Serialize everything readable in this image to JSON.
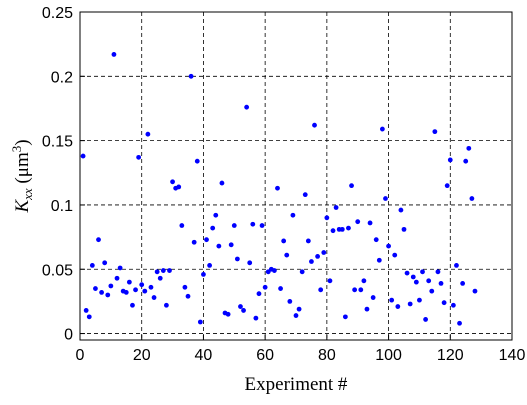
{
  "chart_data": {
    "type": "scatter",
    "x_label": "Experiment #",
    "y_label": [
      "K",
      "xx",
      " (μm",
      "3",
      ")"
    ],
    "color": "#0000ff",
    "grid": true,
    "xlim": [
      0,
      140
    ],
    "xticks": [
      0,
      20,
      40,
      60,
      80,
      100,
      120,
      140
    ],
    "ylim": [
      -0.005,
      0.25
    ],
    "yticks": [
      0,
      0.05,
      0.1,
      0.15,
      0.2,
      0.25
    ],
    "x": [
      1,
      2,
      3,
      4,
      5,
      6,
      7,
      8,
      9,
      10,
      11,
      12,
      13,
      14,
      15,
      16,
      17,
      18,
      19,
      20,
      21,
      22,
      23,
      24,
      25,
      26,
      27,
      28,
      29,
      30,
      31,
      32,
      33,
      34,
      35,
      36,
      37,
      38,
      39,
      40,
      41,
      42,
      43,
      44,
      45,
      46,
      47,
      48,
      49,
      50,
      51,
      52,
      53,
      54,
      55,
      56,
      57,
      58,
      59,
      60,
      61,
      62,
      63,
      64,
      65,
      66,
      67,
      68,
      69,
      70,
      71,
      72,
      73,
      74,
      75,
      76,
      77,
      78,
      79,
      80,
      81,
      82,
      83,
      84,
      85,
      86,
      87,
      88,
      89,
      90,
      91,
      92,
      93,
      94,
      95,
      96,
      97,
      98,
      99,
      100,
      101,
      102,
      103,
      104,
      105,
      106,
      107,
      108,
      109,
      110,
      111,
      112,
      113,
      114,
      115,
      116,
      117,
      118,
      119,
      120,
      121,
      122,
      123,
      124,
      125,
      126,
      127,
      128
    ],
    "values": [
      0.138,
      0.018,
      0.013,
      0.053,
      0.035,
      0.073,
      0.032,
      0.055,
      0.03,
      0.037,
      0.217,
      0.043,
      0.051,
      0.033,
      0.032,
      0.04,
      0.022,
      0.034,
      0.137,
      0.038,
      0.033,
      0.155,
      0.036,
      0.028,
      0.048,
      0.043,
      0.049,
      0.022,
      0.049,
      0.118,
      0.113,
      0.114,
      0.084,
      0.036,
      0.029,
      0.2,
      0.071,
      0.134,
      0.009,
      0.046,
      0.073,
      0.053,
      0.082,
      0.092,
      0.068,
      0.117,
      0.016,
      0.015,
      0.069,
      0.084,
      0.058,
      0.021,
      0.018,
      0.176,
      0.055,
      0.085,
      0.012,
      0.031,
      0.084,
      0.036,
      0.048,
      0.05,
      0.049,
      0.113,
      0.035,
      0.072,
      0.061,
      0.025,
      0.092,
      0.014,
      0.019,
      0.048,
      0.108,
      0.072,
      0.056,
      0.162,
      0.06,
      0.034,
      0.063,
      0.09,
      0.041,
      0.08,
      0.098,
      0.081,
      0.081,
      0.013,
      0.082,
      0.115,
      0.034,
      0.087,
      0.034,
      0.041,
      0.019,
      0.086,
      0.028,
      0.073,
      0.057,
      0.159,
      0.105,
      0.068,
      0.026,
      0.061,
      0.021,
      0.096,
      0.081,
      0.047,
      0.023,
      0.044,
      0.04,
      0.026,
      0.048,
      0.011,
      0.041,
      0.033,
      0.157,
      0.048,
      0.039,
      0.024,
      0.115,
      0.135,
      0.022,
      0.053,
      0.008,
      0.039,
      0.134,
      0.144,
      0.105,
      0.033
    ]
  }
}
